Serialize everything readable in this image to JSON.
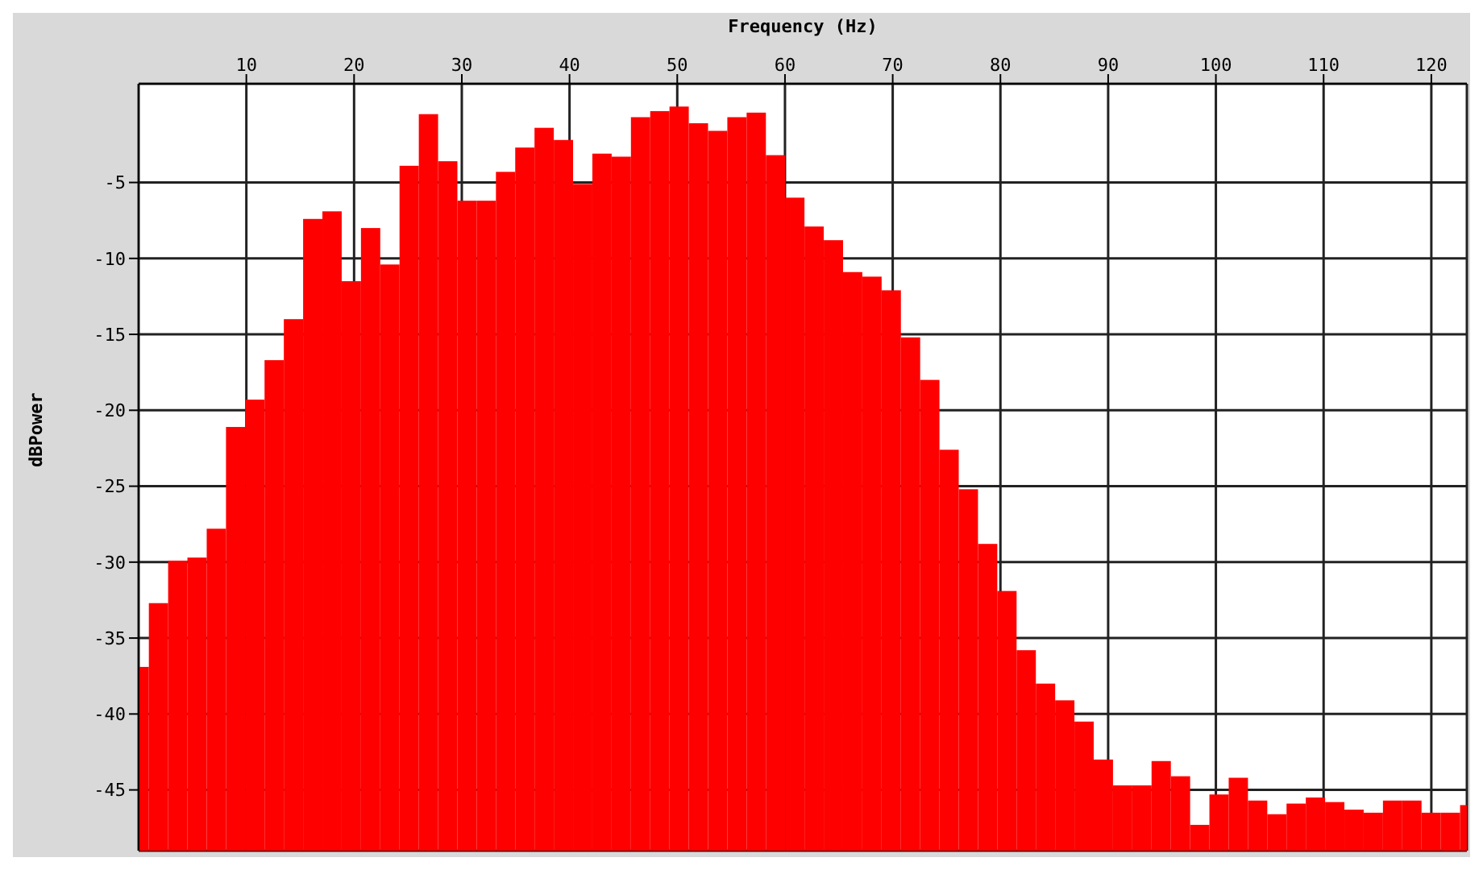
{
  "chart_data": {
    "type": "histogram",
    "xlabel": "Frequency (Hz)",
    "ylabel": "dBPower",
    "color": "#ff0000",
    "bins": [
      0,
      0.895,
      2.685,
      4.475,
      6.265,
      8.055,
      9.845,
      11.635,
      13.425,
      15.215,
      17.005,
      18.795,
      20.585,
      22.375,
      24.165,
      25.955,
      27.745,
      29.535,
      31.325,
      33.115,
      34.905,
      36.695,
      38.485,
      40.275,
      42.065,
      43.855,
      45.645,
      47.435,
      49.225,
      51.015,
      52.805,
      54.595,
      56.385,
      58.175,
      59.965,
      61.755,
      63.545,
      65.335,
      67.125,
      68.915,
      70.705,
      72.495,
      74.285,
      76.075,
      77.865,
      79.655,
      81.445,
      83.235,
      85.025,
      86.815,
      88.605,
      90.395,
      92.185,
      93.975,
      95.765,
      97.555,
      99.345,
      101.135,
      102.925,
      104.715,
      106.505,
      108.295,
      110.085,
      111.875,
      113.665,
      115.455,
      117.245,
      119.035,
      120.825,
      122.615,
      123.3
    ],
    "values": [
      12.1,
      16.3,
      19.1,
      19.3,
      21.2,
      27.9,
      29.7,
      32.3,
      35.0,
      41.6,
      42.1,
      37.5,
      41.0,
      38.6,
      45.1,
      48.5,
      45.4,
      42.8,
      42.8,
      44.7,
      46.3,
      47.6,
      46.8,
      43.9,
      45.9,
      45.7,
      48.3,
      48.7,
      49.0,
      47.9,
      47.4,
      48.3,
      48.6,
      45.8,
      43.0,
      41.1,
      40.2,
      38.1,
      37.8,
      36.9,
      33.8,
      31.0,
      26.4,
      23.8,
      20.2,
      17.1,
      13.2,
      11.0,
      9.9,
      8.5,
      6.0,
      4.3,
      4.3,
      5.9,
      4.9,
      1.7,
      3.7,
      4.8,
      3.3,
      2.4,
      3.1,
      3.5,
      3.2,
      2.7,
      2.5,
      3.3,
      3.3,
      2.5,
      2.5,
      3.0
    ],
    "base": [
      -49,
      -49,
      -49,
      -49,
      -49,
      -49,
      -49,
      -49,
      -49,
      -49,
      -49,
      -49,
      -49,
      -49,
      -49,
      -49,
      -49,
      -49,
      -49,
      -49,
      -49,
      -49,
      -49,
      -49,
      -49,
      -49,
      -49,
      -49,
      -49,
      -49,
      -49,
      -49,
      -49,
      -49,
      -49,
      -49,
      -49,
      -49,
      -49,
      -49,
      -49,
      -49,
      -49,
      -49,
      -49,
      -49,
      -49,
      -49,
      -49,
      -49,
      -49,
      -49,
      -49,
      -49,
      -49,
      -49,
      -49,
      -49,
      -49,
      -49,
      -49,
      -49,
      -49,
      -49,
      -49,
      -49,
      -49,
      -49,
      -49,
      -49
    ],
    "xlim": [
      0,
      123.3
    ],
    "xticks": [
      10,
      20,
      30,
      40,
      50,
      60,
      70,
      80,
      90,
      100,
      110,
      120
    ],
    "ylim": [
      -49,
      1.5
    ],
    "yticks": [
      -45,
      -40,
      -35,
      -30,
      -25,
      -20,
      -15,
      -10,
      -5
    ],
    "grid": true
  }
}
